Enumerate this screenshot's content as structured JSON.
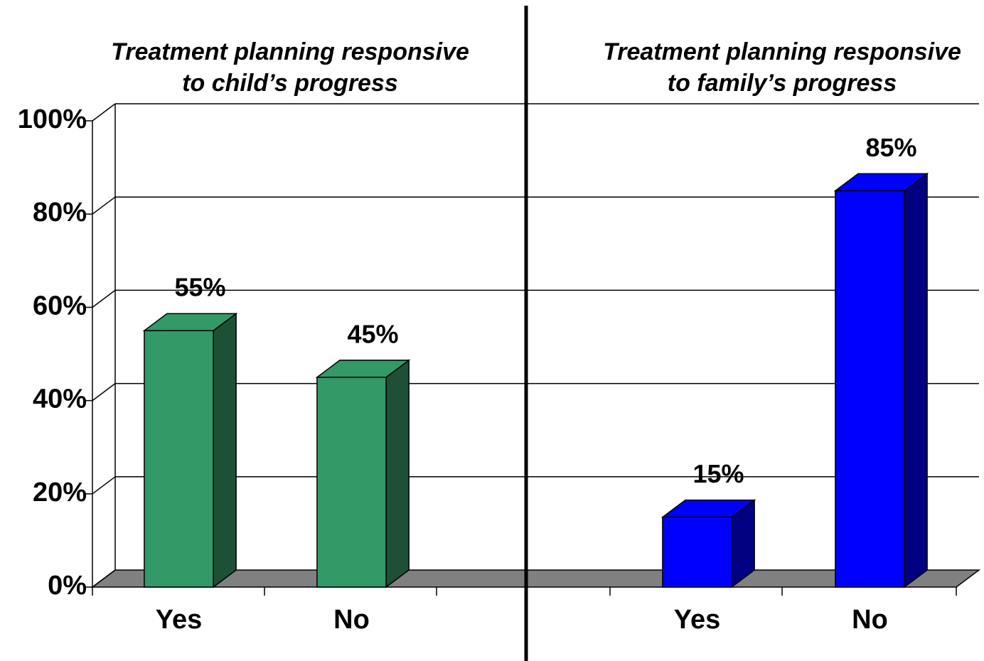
{
  "chart_data": {
    "type": "bar3d",
    "annotations": [
      {
        "lines": [
          "Treatment planning responsive",
          "to child’s progress"
        ]
      },
      {
        "lines": [
          "Treatment planning responsive",
          "to family’s progress"
        ]
      }
    ],
    "categories": [
      "Yes",
      "No",
      null,
      "Yes",
      "No"
    ],
    "series": [
      {
        "color": "#339966",
        "side_color": "#1e5035",
        "values": [
          55,
          45,
          null,
          null,
          null
        ],
        "value_labels": [
          "55%",
          "45%",
          null,
          null,
          null
        ]
      },
      {
        "color": "#0000ff",
        "side_color": "#000080",
        "values": [
          null,
          null,
          null,
          15,
          85
        ],
        "value_labels": [
          null,
          null,
          null,
          "15%",
          "85%"
        ]
      }
    ],
    "ylim": [
      0,
      100
    ],
    "yticks": [
      {
        "value": 0,
        "label": "0%"
      },
      {
        "value": 20,
        "label": "20%"
      },
      {
        "value": 40,
        "label": "40%"
      },
      {
        "value": 60,
        "label": "60%"
      },
      {
        "value": 80,
        "label": "80%"
      },
      {
        "value": 100,
        "label": "100%"
      }
    ],
    "grid": true
  }
}
